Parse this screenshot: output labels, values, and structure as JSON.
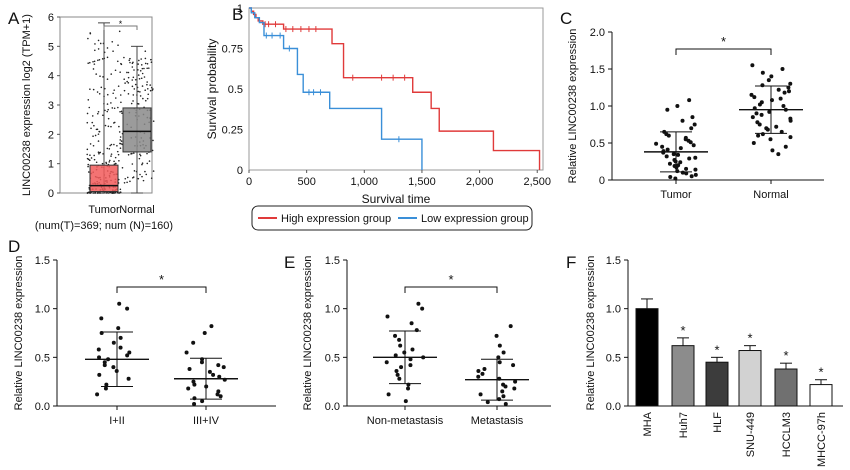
{
  "colors": {
    "tumor_box": "#f25b5b",
    "normal_box": "#8a8a8a",
    "high_line": "#e03a3a",
    "low_line": "#3a8fd8",
    "bar_colors": [
      "#000000",
      "#8c8c8c",
      "#3c3c3c",
      "#d2d2d2",
      "#707070",
      "#ffffff"
    ]
  },
  "chart_data": [
    {
      "panel": "A",
      "type": "box",
      "ylabel": "LINC00238 expression log2 (TPM+1)",
      "ylim": [
        0,
        6
      ],
      "yticks": [
        0,
        1,
        2,
        3,
        4,
        5,
        6
      ],
      "categories": [
        "Tumor",
        "Normal"
      ],
      "boxes": [
        {
          "q1": 0.05,
          "median": 0.25,
          "q3": 0.95,
          "whisker_low": 0,
          "whisker_high": 5.8
        },
        {
          "q1": 1.4,
          "median": 2.1,
          "q3": 2.9,
          "whisker_low": 0,
          "whisker_high": 5.0
        }
      ],
      "significance": "*",
      "footnote": "(num(T)=369; num (N)=160)"
    },
    {
      "panel": "B",
      "type": "line",
      "xlabel": "Survival time",
      "ylabel": "Survival probability",
      "xlim": [
        0,
        2550
      ],
      "ylim": [
        0,
        1
      ],
      "xticks": [
        0,
        500,
        1000,
        1500,
        2000,
        2500
      ],
      "xtick_labels": [
        "0",
        "500",
        "1,000",
        "1,500",
        "2,000",
        "2,500"
      ],
      "yticks": [
        0,
        0.25,
        0.5,
        0.75,
        1
      ],
      "ytick_labels": [
        "0",
        "0.25",
        "0.5",
        "0.75",
        "1"
      ],
      "series": [
        {
          "name": "High expression group",
          "x": [
            0,
            20,
            40,
            60,
            80,
            120,
            300,
            620,
            720,
            820,
            1420,
            1580,
            1650,
            2120,
            2520
          ],
          "y": [
            1,
            0.98,
            0.96,
            0.94,
            0.92,
            0.9,
            0.87,
            0.87,
            0.78,
            0.57,
            0.48,
            0.38,
            0.24,
            0.12,
            0
          ],
          "censored_x": [
            140,
            170,
            230,
            320,
            380,
            450,
            520,
            580,
            900,
            1150,
            1250,
            1350
          ]
        },
        {
          "name": "Low expression group",
          "x": [
            0,
            20,
            50,
            90,
            130,
            300,
            420,
            470,
            700,
            1150,
            1190,
            1500
          ],
          "y": [
            1,
            0.97,
            0.94,
            0.91,
            0.83,
            0.75,
            0.59,
            0.48,
            0.38,
            0.19,
            0.19,
            0
          ],
          "censored_x": [
            150,
            200,
            270,
            350,
            520,
            560,
            620,
            1300
          ]
        }
      ]
    },
    {
      "panel": "C",
      "type": "scatter",
      "ylabel": "Relative LINC00238 expression",
      "ylim": [
        0,
        2.0
      ],
      "yticks": [
        0,
        0.5,
        1.0,
        1.5,
        2.0
      ],
      "ytick_labels": [
        "0",
        "0.5",
        "1.0",
        "1.5",
        "2.0"
      ],
      "categories": [
        "Tumor",
        "Normal"
      ],
      "groups": [
        {
          "mean": 0.38,
          "sd": 0.27,
          "values": [
            0.02,
            0.04,
            0.05,
            0.07,
            0.09,
            0.1,
            0.12,
            0.14,
            0.15,
            0.17,
            0.19,
            0.2,
            0.22,
            0.24,
            0.25,
            0.27,
            0.29,
            0.3,
            0.32,
            0.34,
            0.35,
            0.37,
            0.39,
            0.41,
            0.43,
            0.45,
            0.47,
            0.49,
            0.51,
            0.53,
            0.55,
            0.57,
            0.6,
            0.62,
            0.65,
            0.7,
            0.75,
            0.8,
            0.85,
            0.95,
            1.0,
            1.08
          ]
        },
        {
          "mean": 0.95,
          "sd": 0.32,
          "values": [
            0.35,
            0.4,
            0.45,
            0.5,
            0.55,
            0.58,
            0.6,
            0.62,
            0.65,
            0.68,
            0.7,
            0.72,
            0.75,
            0.78,
            0.8,
            0.83,
            0.85,
            0.88,
            0.9,
            0.92,
            0.95,
            0.97,
            1.0,
            1.02,
            1.05,
            1.08,
            1.1,
            1.12,
            1.15,
            1.18,
            1.2,
            1.22,
            1.25,
            1.28,
            1.3,
            1.35,
            1.4,
            1.45,
            1.5,
            1.55
          ]
        }
      ],
      "significance": "*"
    },
    {
      "panel": "D",
      "type": "scatter",
      "ylabel": "Relative LINC00238 expression",
      "ylim": [
        0,
        1.5
      ],
      "yticks": [
        0,
        0.5,
        1.0,
        1.5
      ],
      "ytick_labels": [
        "0.0",
        "0.5",
        "1.0",
        "1.5"
      ],
      "categories": [
        "I+II",
        "III+IV"
      ],
      "groups": [
        {
          "mean": 0.48,
          "sd": 0.28,
          "values": [
            0.12,
            0.18,
            0.22,
            0.28,
            0.32,
            0.36,
            0.4,
            0.42,
            0.45,
            0.48,
            0.5,
            0.52,
            0.55,
            0.58,
            0.6,
            0.65,
            0.7,
            0.75,
            0.8,
            0.9,
            1.0,
            1.05
          ]
        },
        {
          "mean": 0.28,
          "sd": 0.21,
          "values": [
            0.02,
            0.05,
            0.08,
            0.1,
            0.12,
            0.15,
            0.18,
            0.2,
            0.22,
            0.25,
            0.27,
            0.3,
            0.32,
            0.35,
            0.38,
            0.4,
            0.42,
            0.45,
            0.48,
            0.55,
            0.65,
            0.75,
            0.82
          ]
        }
      ],
      "significance": "*"
    },
    {
      "panel": "E",
      "type": "scatter",
      "ylabel": "Relative LINC00238 expression",
      "ylim": [
        0,
        1.5
      ],
      "yticks": [
        0,
        0.5,
        1.0,
        1.5
      ],
      "ytick_labels": [
        "0.0",
        "0.5",
        "1.0",
        "1.5"
      ],
      "categories": [
        "Non-metastasis",
        "Metastasis"
      ],
      "groups": [
        {
          "mean": 0.5,
          "sd": 0.27,
          "values": [
            0.05,
            0.12,
            0.18,
            0.22,
            0.28,
            0.32,
            0.36,
            0.4,
            0.42,
            0.45,
            0.48,
            0.5,
            0.52,
            0.55,
            0.58,
            0.62,
            0.68,
            0.72,
            0.78,
            0.85,
            0.92,
            1.0,
            1.05
          ]
        },
        {
          "mean": 0.27,
          "sd": 0.21,
          "values": [
            0.02,
            0.04,
            0.07,
            0.1,
            0.12,
            0.15,
            0.18,
            0.2,
            0.22,
            0.25,
            0.28,
            0.3,
            0.33,
            0.36,
            0.38,
            0.42,
            0.45,
            0.5,
            0.55,
            0.62,
            0.72,
            0.82
          ]
        }
      ],
      "significance": "*"
    },
    {
      "panel": "F",
      "type": "bar",
      "ylabel": "Relative LINC00238 expression",
      "ylim": [
        0,
        1.5
      ],
      "yticks": [
        0,
        0.5,
        1.0,
        1.5
      ],
      "ytick_labels": [
        "0.0",
        "0.5",
        "1.0",
        "1.5"
      ],
      "categories": [
        "MHA",
        "Huh7",
        "HLF",
        "SNU-449",
        "HCCLM3",
        "MHCC-97h"
      ],
      "values": [
        1.0,
        0.62,
        0.45,
        0.57,
        0.38,
        0.22
      ],
      "errors": [
        0.1,
        0.08,
        0.05,
        0.05,
        0.06,
        0.05
      ],
      "significance": [
        "",
        "*",
        "*",
        "*",
        "*",
        "*"
      ]
    }
  ],
  "panel_labels": [
    "A",
    "B",
    "C",
    "D",
    "E",
    "F"
  ],
  "tick_labels": {
    "a_y": [
      "0",
      "1",
      "2",
      "3",
      "4",
      "5",
      "6"
    ]
  }
}
